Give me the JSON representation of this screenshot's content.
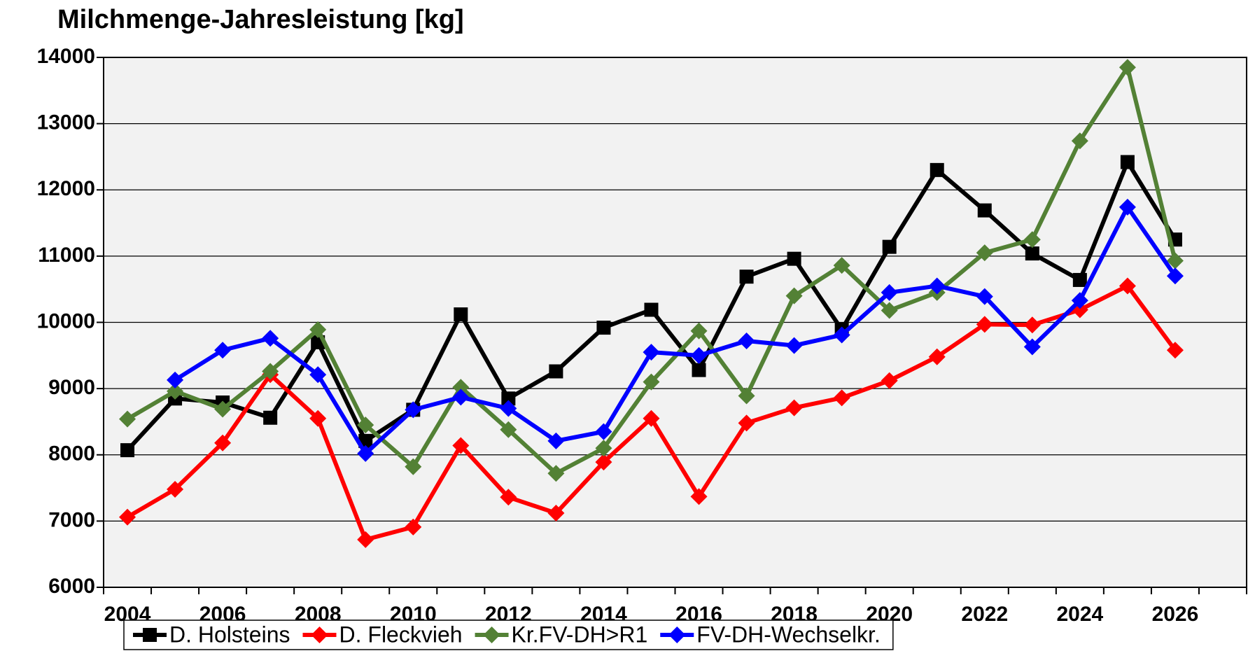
{
  "chart_data": {
    "type": "line",
    "title": "Milchmenge-Jahresleistung [kg]",
    "categories": [
      "2004",
      null,
      "2006",
      null,
      "2008",
      null,
      "2010",
      null,
      "2012",
      null,
      "2014",
      null,
      "2016",
      null,
      "2018",
      null,
      "2020",
      null,
      "2022",
      null,
      "2024",
      null,
      "2026"
    ],
    "series": [
      {
        "name": "D. Holsteins",
        "color": "#000000",
        "marker": "square",
        "values": [
          8070,
          8850,
          8790,
          8560,
          9700,
          8210,
          8680,
          10120,
          8850,
          9260,
          9920,
          10190,
          9280,
          10690,
          10960,
          9890,
          11140,
          12300,
          11690,
          11040,
          10640,
          12420,
          11250
        ]
      },
      {
        "name": "D. Fleckvieh",
        "color": "#ff0000",
        "marker": "diamond",
        "values": [
          7060,
          7480,
          8180,
          9210,
          8550,
          6720,
          6910,
          8140,
          7360,
          7120,
          7890,
          8550,
          7370,
          8480,
          8710,
          8860,
          9120,
          9480,
          9970,
          9960,
          10190,
          10550,
          9580
        ]
      },
      {
        "name": "Kr.FV-DH>R1",
        "color": "#538135",
        "marker": "diamond",
        "values": [
          8540,
          8960,
          8690,
          9260,
          9890,
          8450,
          7820,
          9020,
          8380,
          7720,
          8100,
          9100,
          9870,
          8890,
          10400,
          10860,
          10180,
          10450,
          11050,
          11250,
          12740,
          13850,
          10930
        ]
      },
      {
        "name": "FV-DH-Wechselkr.",
        "color": "#0000ff",
        "marker": "diamond",
        "values": [
          null,
          9130,
          9580,
          9760,
          9210,
          8020,
          8680,
          8870,
          8700,
          8210,
          8350,
          9550,
          9500,
          9720,
          9650,
          9810,
          10450,
          10550,
          10390,
          9630,
          10330,
          11740,
          10700
        ]
      }
    ],
    "ylim": [
      6000,
      14000
    ],
    "yticks": [
      6000,
      7000,
      8000,
      9000,
      10000,
      11000,
      12000,
      13000,
      14000
    ],
    "grid": true
  }
}
